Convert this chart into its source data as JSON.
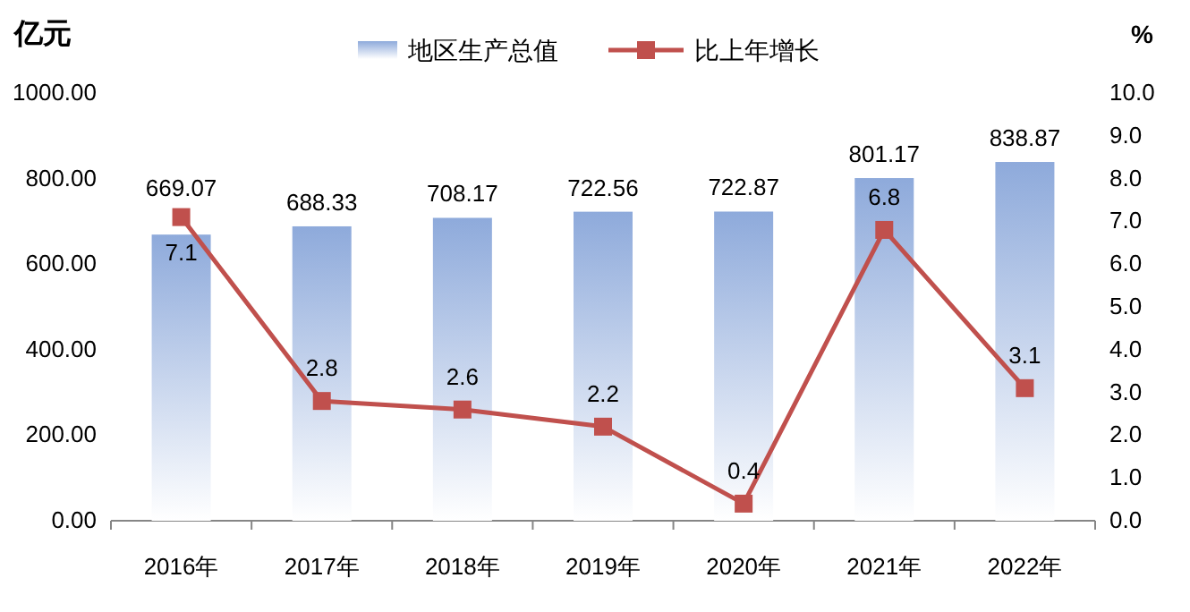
{
  "chart_data": {
    "type": "bar",
    "ylabel": "亿元",
    "y2label": "%",
    "categories": [
      "2016年",
      "2017年",
      "2018年",
      "2019年",
      "2020年",
      "2021年",
      "2022年"
    ],
    "series": [
      {
        "name": "地区生产总值",
        "color": "#8eaadb",
        "values": [
          669.07,
          688.33,
          708.17,
          722.56,
          722.87,
          801.17,
          838.87
        ]
      },
      {
        "name": "比上年增长",
        "type": "line",
        "axis": "y2",
        "color": "#c0504d",
        "values": [
          7.1,
          2.8,
          2.6,
          2.2,
          0.4,
          6.8,
          3.1
        ]
      }
    ],
    "ylim": [
      0,
      1000
    ],
    "yticks": [
      {
        "value": 0,
        "label": "0.00"
      },
      {
        "value": 200,
        "label": "200.00"
      },
      {
        "value": 400,
        "label": "400.00"
      },
      {
        "value": 600,
        "label": "600.00"
      },
      {
        "value": 800,
        "label": "800.00"
      },
      {
        "value": 1000,
        "label": "1000.00"
      }
    ],
    "y2lim": [
      0,
      10
    ],
    "y2ticks": [
      {
        "value": 0,
        "label": "0.0"
      },
      {
        "value": 1,
        "label": "1.0"
      },
      {
        "value": 2,
        "label": "2.0"
      },
      {
        "value": 3,
        "label": "3.0"
      },
      {
        "value": 4,
        "label": "4.0"
      },
      {
        "value": 5,
        "label": "5.0"
      },
      {
        "value": 6,
        "label": "6.0"
      },
      {
        "value": 7,
        "label": "7.0"
      },
      {
        "value": 8,
        "label": "8.0"
      },
      {
        "value": 9,
        "label": "9.0"
      },
      {
        "value": 10,
        "label": "10.0"
      }
    ],
    "data_labels": true,
    "legend": "top",
    "marker": "square",
    "line_style": "solid",
    "grid": false
  }
}
